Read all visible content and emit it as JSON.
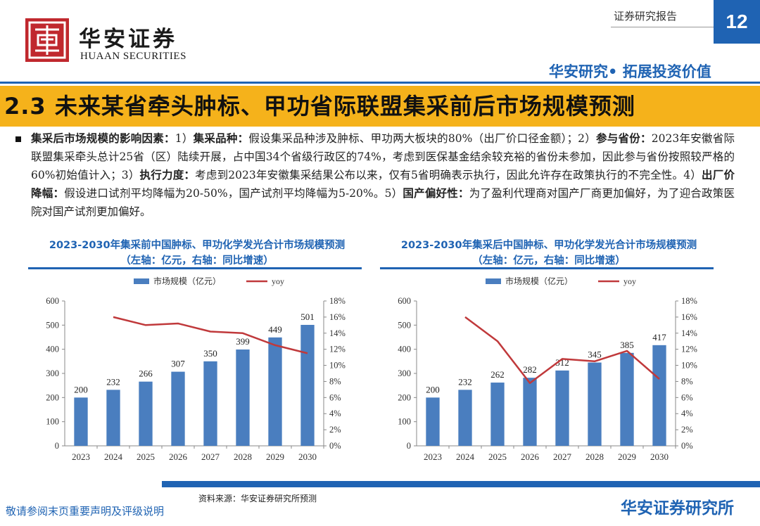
{
  "header": {
    "brand_cn": "华安证券",
    "brand_en": "HUAAN SECURITIES",
    "report_type": "证券研究报告",
    "page_number": "12",
    "slogan": "华安研究• 拓展投资价值",
    "brand_color": "#c0282e",
    "accent_color": "#1f63b3"
  },
  "section": {
    "title": "2.3 未来某省牵头肿标、甲功省际联盟集采前后市场规模预测",
    "band_color": "#f5b21b"
  },
  "paragraph": {
    "s1_label": "集采后市场规模的影响因素：",
    "s1_text": "1）",
    "s2_label": "集采品种：",
    "s2_text": "假设集采品种涉及肿标、甲功两大板块的80%（出厂价口径金额）；2）",
    "s3_label": "参与省份：",
    "s3_text": "2023年安徽省际联盟集采牵头总计25省（区）陆续开展，占中国34个省级行政区的74%，考虑到医保基金结余较充裕的省份未参加，因此参与省份按照较严格的60%初始值计入；3）",
    "s4_label": "执行力度：",
    "s4_text": "考虑到2023年安徽集采结果公布以来，仅有5省明确表示执行，因此允许存在政策执行的不完全性。4）",
    "s5_label": "出厂价降幅：",
    "s5_text": "假设进口试剂平均降幅为20-50%，国产试剂平均降幅为5-20%。5）",
    "s6_label": "国产偏好性：",
    "s6_text": "为了盈利代理商对国产厂商更加偏好，为了迎合政策医院对国产试剂更加偏好。"
  },
  "chart_data": [
    {
      "type": "bar",
      "title_line1": "2023-2030年集采前中国肿标、甲功化学发光合计市场规模预测",
      "title_line2": "（左轴：亿元，右轴：同比增速）",
      "categories": [
        "2023",
        "2024",
        "2025",
        "2026",
        "2027",
        "2028",
        "2029",
        "2030"
      ],
      "series": [
        {
          "name": "市场规模（亿元）",
          "type": "bar",
          "axis": "left",
          "color": "#4a7ebf",
          "values": [
            200,
            232,
            266,
            307,
            350,
            399,
            449,
            501
          ]
        },
        {
          "name": "yoy",
          "type": "line",
          "axis": "right",
          "color": "#c0393b",
          "values": [
            null,
            16.0,
            15.0,
            15.2,
            14.2,
            14.0,
            12.5,
            11.5
          ]
        }
      ],
      "left_ylim": [
        0,
        600
      ],
      "left_ticks": [
        "0",
        "100",
        "200",
        "300",
        "400",
        "500",
        "600"
      ],
      "right_ylim": [
        0,
        18
      ],
      "right_ticks": [
        "0%",
        "2%",
        "4%",
        "6%",
        "8%",
        "10%",
        "12%",
        "14%",
        "16%",
        "18%"
      ],
      "legend_position": "top-center",
      "grid": false
    },
    {
      "type": "bar",
      "title_line1": "2023-2030年集采后中国肿标、甲功化学发光合计市场规模预测",
      "title_line2": "（左轴：亿元，右轴：同比增速）",
      "categories": [
        "2023",
        "2024",
        "2025",
        "2026",
        "2027",
        "2028",
        "2029",
        "2030"
      ],
      "series": [
        {
          "name": "市场规模（亿元）",
          "type": "bar",
          "axis": "left",
          "color": "#4a7ebf",
          "values": [
            200,
            232,
            262,
            282,
            312,
            345,
            385,
            417
          ]
        },
        {
          "name": "yoy",
          "type": "line",
          "axis": "right",
          "color": "#c0393b",
          "values": [
            null,
            16.0,
            13.0,
            7.8,
            10.8,
            10.5,
            11.8,
            8.3
          ]
        }
      ],
      "left_ylim": [
        0,
        600
      ],
      "left_ticks": [
        "0",
        "100",
        "200",
        "300",
        "400",
        "500",
        "600"
      ],
      "right_ylim": [
        0,
        18
      ],
      "right_ticks": [
        "0%",
        "2%",
        "4%",
        "6%",
        "8%",
        "10%",
        "12%",
        "14%",
        "16%",
        "18%"
      ],
      "legend_position": "top-center",
      "grid": false
    }
  ],
  "footer": {
    "source": "资料来源：华安证券研究所预测",
    "disclaimer": "敬请参阅末页重要声明及评级说明",
    "brand": "华安证券研究所"
  }
}
